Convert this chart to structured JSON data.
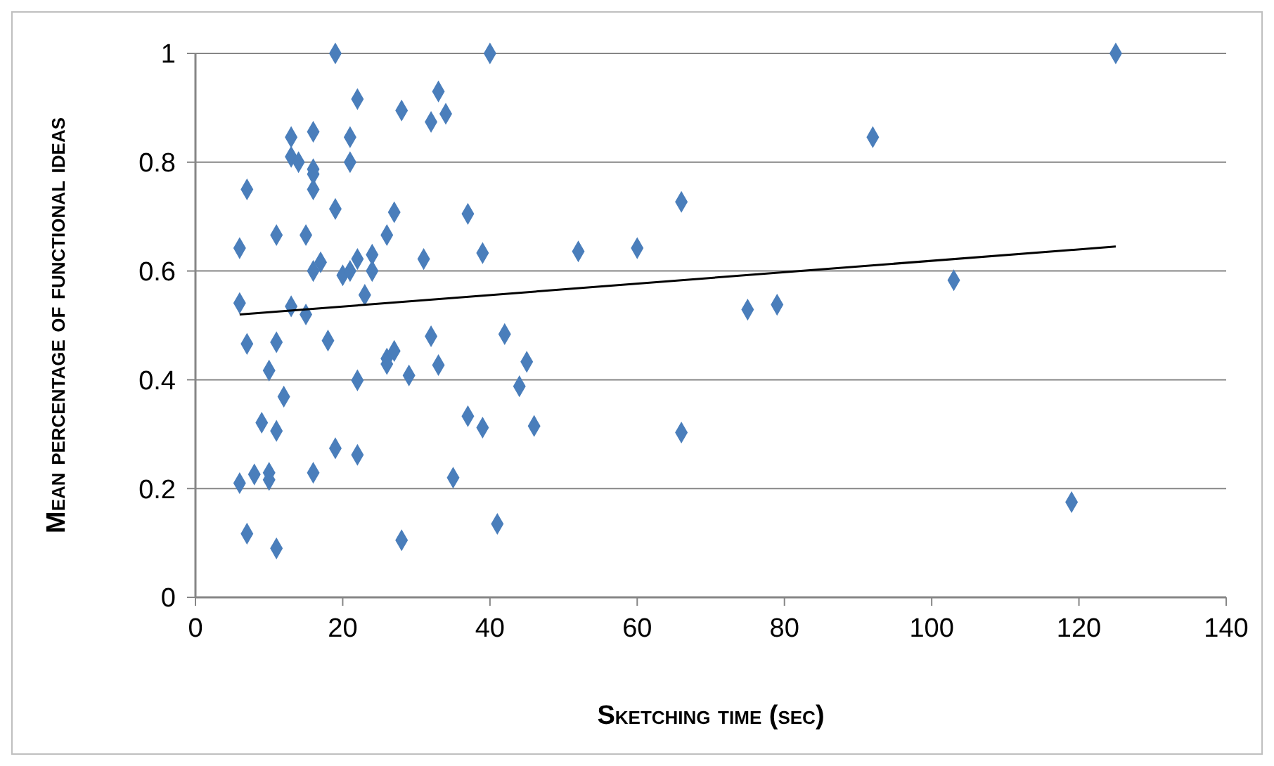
{
  "chart_data": {
    "type": "scatter",
    "xlabel": "Sketching time (sec)",
    "ylabel": "Mean percentage of functional ideas",
    "xlim": [
      0,
      140
    ],
    "xticks": [
      0,
      20,
      40,
      60,
      80,
      100,
      120,
      140
    ],
    "ylim": [
      0,
      1
    ],
    "yticks": [
      0,
      0.2,
      0.4,
      0.6,
      0.8,
      1
    ],
    "grid": "y",
    "marker": "diamond",
    "series": [
      {
        "color": "#4a7ebb",
        "x": [
          19,
          40,
          125,
          22,
          33,
          34,
          28,
          32,
          13,
          16,
          21,
          92,
          13,
          14,
          21,
          16,
          16,
          7,
          16,
          19,
          27,
          37,
          66,
          11,
          15,
          26,
          6,
          60,
          52,
          39,
          24,
          22,
          31,
          17,
          16,
          20,
          21,
          24,
          23,
          103,
          6,
          13,
          15,
          75,
          79,
          7,
          11,
          18,
          32,
          42,
          27,
          26,
          26,
          33,
          45,
          10,
          29,
          22,
          44,
          12,
          37,
          9,
          11,
          39,
          46,
          66,
          19,
          22,
          8,
          10,
          10,
          16,
          35,
          6,
          119,
          7,
          11,
          28,
          41
        ],
        "values": [
          1,
          1,
          1,
          0.916,
          0.93,
          0.889,
          0.895,
          0.874,
          0.846,
          0.856,
          0.846,
          0.846,
          0.81,
          0.8,
          0.8,
          0.787,
          0.778,
          0.75,
          0.75,
          0.714,
          0.708,
          0.705,
          0.727,
          0.666,
          0.666,
          0.666,
          0.642,
          0.642,
          0.636,
          0.633,
          0.63,
          0.622,
          0.622,
          0.616,
          0.6,
          0.592,
          0.6,
          0.6,
          0.556,
          0.583,
          0.541,
          0.535,
          0.52,
          0.529,
          0.538,
          0.466,
          0.469,
          0.472,
          0.48,
          0.484,
          0.453,
          0.439,
          0.429,
          0.427,
          0.433,
          0.417,
          0.408,
          0.399,
          0.388,
          0.369,
          0.333,
          0.321,
          0.306,
          0.312,
          0.315,
          0.303,
          0.274,
          0.262,
          0.226,
          0.229,
          0.216,
          0.229,
          0.22,
          0.21,
          0.175,
          0.117,
          0.09,
          0.105,
          0.135
        ]
      },
      {
        "type": "line",
        "color": "#000000",
        "marker": "none",
        "x": [
          6,
          125
        ],
        "values": [
          0.52,
          0.645
        ]
      }
    ]
  }
}
